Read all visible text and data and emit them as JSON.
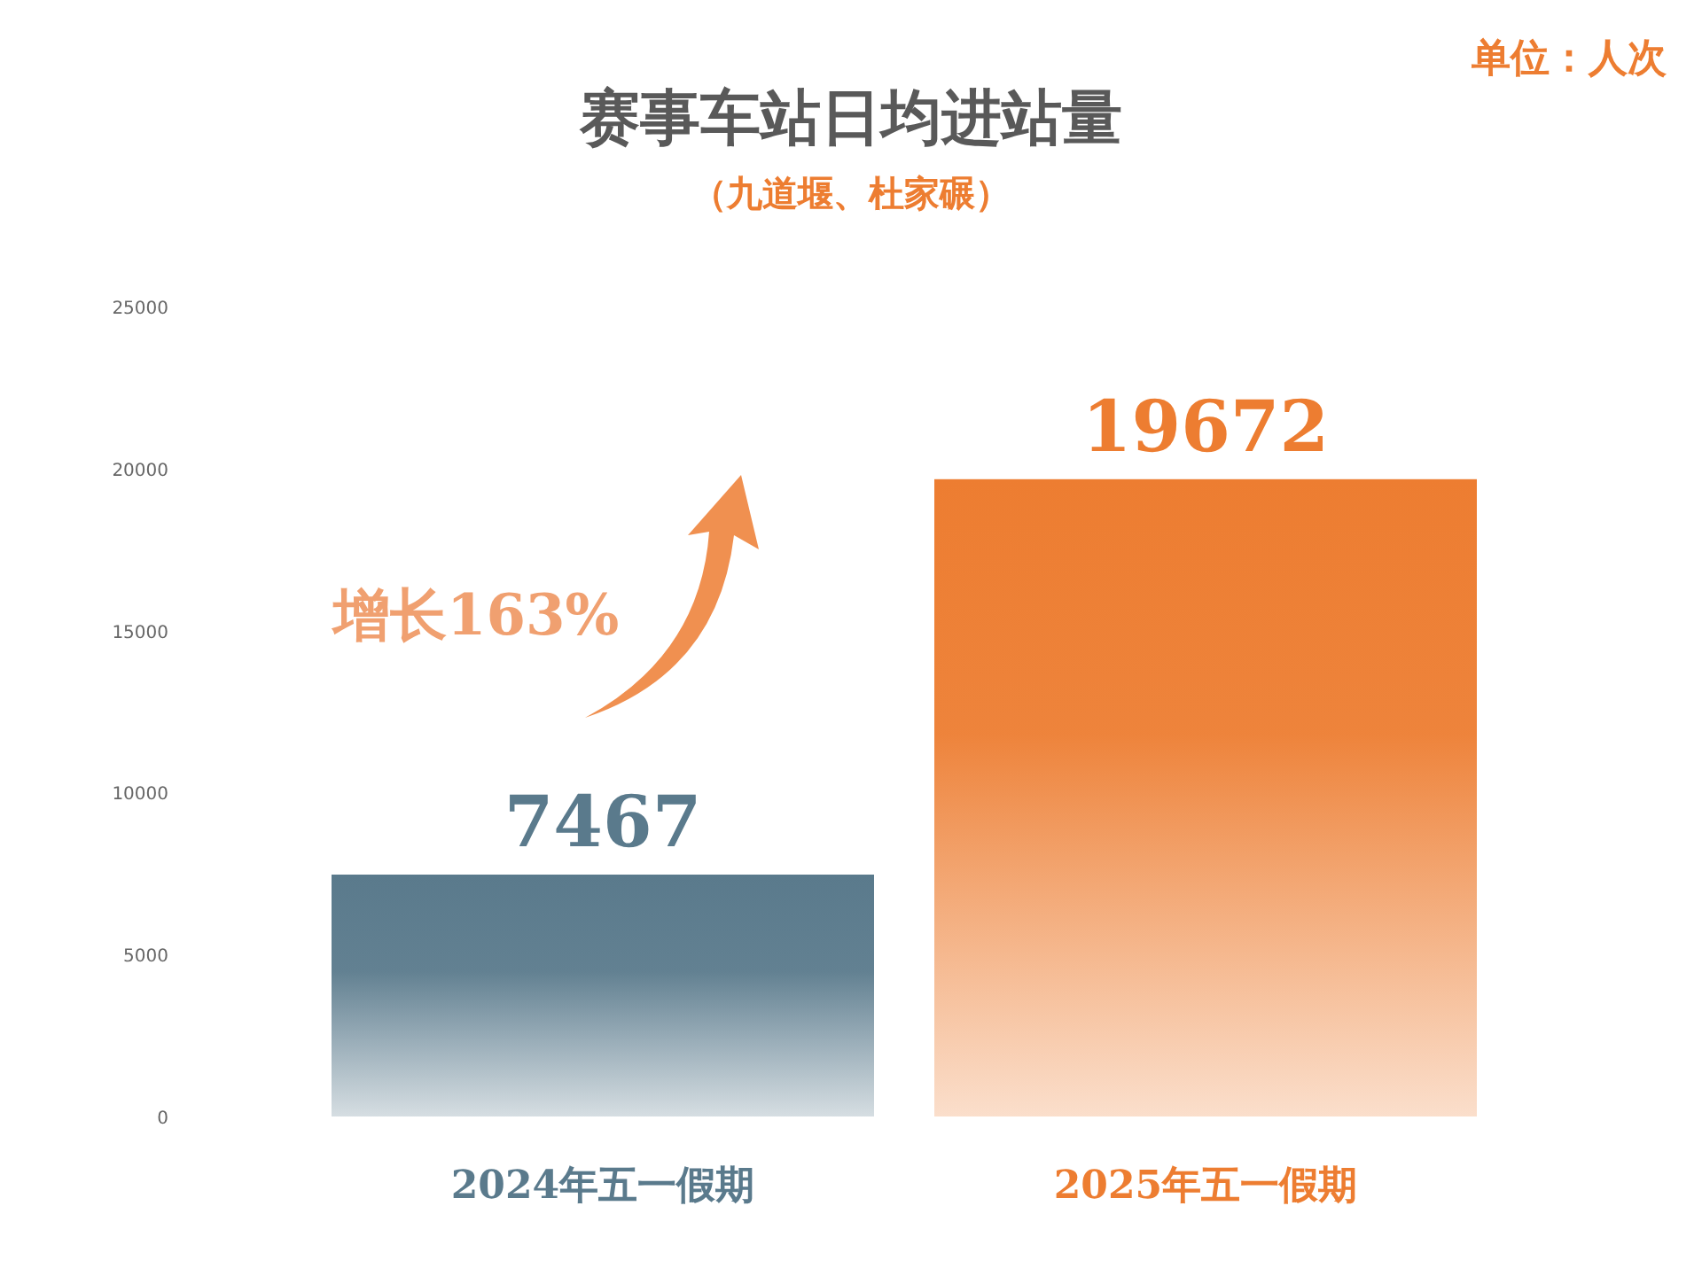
{
  "chart_data": {
    "type": "bar",
    "title": "赛事车站日均进站量",
    "subtitle": "（九道堰、杜家碾）",
    "categories": [
      "2024年五一假期",
      "2025年五一假期"
    ],
    "values": [
      7467,
      19672
    ],
    "colors": [
      "#5a7a8c",
      "#ed7d31"
    ],
    "ylim": [
      0,
      25000
    ],
    "yticks": [
      0,
      5000,
      10000,
      15000,
      20000,
      25000
    ],
    "data_labels": true,
    "annotations": [
      "单位：人次",
      "增长163%"
    ]
  }
}
